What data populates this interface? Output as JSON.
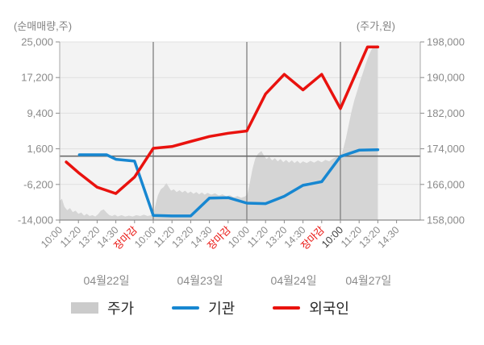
{
  "chart_data": {
    "type": "mixed-area-line",
    "title": "",
    "left_axis": {
      "title": "(순매매량,주)",
      "ticks": [
        25000,
        17200,
        9400,
        1600,
        -6200,
        -14000
      ],
      "min": -14000,
      "max": 25000,
      "zero_line": 0
    },
    "right_axis": {
      "title": "(주가,원)",
      "ticks": [
        198000,
        190000,
        182000,
        174000,
        166000,
        158000
      ],
      "min": 158000,
      "max": 198000
    },
    "x_ticks": [
      {
        "label": "10:00"
      },
      {
        "label": "11:20"
      },
      {
        "label": "13:20"
      },
      {
        "label": "14:30"
      },
      {
        "label": "장마감",
        "close": true
      },
      {
        "label": "10:00"
      },
      {
        "label": "11:20"
      },
      {
        "label": "13:20"
      },
      {
        "label": "14:30"
      },
      {
        "label": "장마감",
        "close": true
      },
      {
        "label": "10:00"
      },
      {
        "label": "11:20"
      },
      {
        "label": "13:20"
      },
      {
        "label": "14:30"
      },
      {
        "label": "장마감",
        "close": true
      },
      {
        "label": "10:00",
        "em": true
      },
      {
        "label": "11:20"
      },
      {
        "label": "13:20"
      },
      {
        "label": "14:30"
      }
    ],
    "day_separators": [
      5,
      10,
      15
    ],
    "days": [
      {
        "label": "04월22일",
        "from_tick": 0,
        "to_tick": 5
      },
      {
        "label": "04월23일",
        "from_tick": 5,
        "to_tick": 10
      },
      {
        "label": "04월24일",
        "from_tick": 10,
        "to_tick": 15
      },
      {
        "label": "04월27일",
        "from_tick": 15,
        "to_tick": 18
      }
    ],
    "series": [
      {
        "name": "주가",
        "kind": "area",
        "axis": "right",
        "color": "#d5d5d5",
        "points": [
          [
            0,
            162300
          ],
          [
            0.12,
            162800
          ],
          [
            0.25,
            161000
          ],
          [
            0.4,
            160200
          ],
          [
            0.55,
            160700
          ],
          [
            0.7,
            159800
          ],
          [
            0.85,
            160100
          ],
          [
            1.0,
            159400
          ],
          [
            1.15,
            159700
          ],
          [
            1.3,
            159000
          ],
          [
            1.45,
            159400
          ],
          [
            1.6,
            158900
          ],
          [
            1.75,
            159100
          ],
          [
            1.9,
            158800
          ],
          [
            2.05,
            159300
          ],
          [
            2.2,
            160100
          ],
          [
            2.35,
            160400
          ],
          [
            2.5,
            159700
          ],
          [
            2.65,
            159100
          ],
          [
            2.8,
            158900
          ],
          [
            2.95,
            159200
          ],
          [
            3.1,
            158800
          ],
          [
            3.3,
            159100
          ],
          [
            3.5,
            158800
          ],
          [
            3.7,
            159000
          ],
          [
            3.9,
            158800
          ],
          [
            4.1,
            159100
          ],
          [
            4.3,
            158900
          ],
          [
            4.5,
            159200
          ],
          [
            4.7,
            158900
          ],
          [
            4.9,
            159100
          ],
          [
            5.03,
            159800
          ],
          [
            5.12,
            161500
          ],
          [
            5.25,
            163600
          ],
          [
            5.4,
            164900
          ],
          [
            5.55,
            165400
          ],
          [
            5.7,
            166300
          ],
          [
            5.82,
            165500
          ],
          [
            5.95,
            164600
          ],
          [
            6.1,
            164900
          ],
          [
            6.25,
            164300
          ],
          [
            6.4,
            164700
          ],
          [
            6.55,
            164200
          ],
          [
            6.7,
            164600
          ],
          [
            6.85,
            164000
          ],
          [
            7.0,
            164400
          ],
          [
            7.15,
            163900
          ],
          [
            7.3,
            164300
          ],
          [
            7.45,
            163800
          ],
          [
            7.6,
            164200
          ],
          [
            7.75,
            163700
          ],
          [
            7.9,
            164100
          ],
          [
            8.1,
            163700
          ],
          [
            8.3,
            164000
          ],
          [
            8.5,
            163500
          ],
          [
            8.7,
            163800
          ],
          [
            8.9,
            163300
          ],
          [
            9.1,
            163600
          ],
          [
            9.3,
            163100
          ],
          [
            9.5,
            163400
          ],
          [
            9.7,
            163000
          ],
          [
            9.9,
            163300
          ],
          [
            10.03,
            163800
          ],
          [
            10.15,
            166200
          ],
          [
            10.3,
            169500
          ],
          [
            10.45,
            171800
          ],
          [
            10.6,
            172900
          ],
          [
            10.78,
            173500
          ],
          [
            10.92,
            172400
          ],
          [
            11.05,
            171700
          ],
          [
            11.2,
            172200
          ],
          [
            11.35,
            171400
          ],
          [
            11.5,
            171900
          ],
          [
            11.65,
            171200
          ],
          [
            11.8,
            171700
          ],
          [
            11.95,
            171000
          ],
          [
            12.1,
            171500
          ],
          [
            12.25,
            170900
          ],
          [
            12.4,
            171400
          ],
          [
            12.55,
            170800
          ],
          [
            12.7,
            171300
          ],
          [
            12.85,
            170700
          ],
          [
            13.0,
            171200
          ],
          [
            13.2,
            170800
          ],
          [
            13.4,
            171300
          ],
          [
            13.6,
            170900
          ],
          [
            13.8,
            171400
          ],
          [
            14.0,
            171000
          ],
          [
            14.2,
            171500
          ],
          [
            14.4,
            171200
          ],
          [
            14.6,
            171800
          ],
          [
            14.8,
            172200
          ],
          [
            14.95,
            171900
          ],
          [
            15.03,
            172300
          ],
          [
            15.15,
            174000
          ],
          [
            15.3,
            176500
          ],
          [
            15.45,
            179500
          ],
          [
            15.6,
            182500
          ],
          [
            15.75,
            185000
          ],
          [
            15.9,
            187000
          ],
          [
            16.05,
            189200
          ],
          [
            16.2,
            191000
          ],
          [
            16.35,
            193000
          ],
          [
            16.5,
            194800
          ],
          [
            16.65,
            196200
          ],
          [
            16.8,
            197000
          ],
          [
            17.0,
            197300
          ]
        ]
      },
      {
        "name": "기관",
        "kind": "line",
        "axis": "left",
        "color": "#1787d1",
        "points": [
          [
            1.05,
            300
          ],
          [
            2.5,
            300
          ],
          [
            3,
            -700
          ],
          [
            4,
            -1100
          ],
          [
            5,
            -13000
          ],
          [
            6,
            -13100
          ],
          [
            7,
            -13100
          ],
          [
            8,
            -9200
          ],
          [
            9,
            -9100
          ],
          [
            10,
            -10300
          ],
          [
            11,
            -10400
          ],
          [
            12,
            -8800
          ],
          [
            13,
            -6400
          ],
          [
            14,
            -5600
          ],
          [
            15,
            -100
          ],
          [
            16,
            1300
          ],
          [
            17,
            1400
          ]
        ]
      },
      {
        "name": "외국인",
        "kind": "line",
        "axis": "left",
        "color": "#e9120e",
        "points": [
          [
            0.35,
            -1300
          ],
          [
            1,
            -3600
          ],
          [
            2,
            -6800
          ],
          [
            3,
            -8200
          ],
          [
            4,
            -4600
          ],
          [
            5,
            1700
          ],
          [
            6,
            2100
          ],
          [
            7,
            3200
          ],
          [
            8,
            4300
          ],
          [
            9,
            5000
          ],
          [
            10,
            5500
          ],
          [
            11,
            13600
          ],
          [
            12,
            17900
          ],
          [
            13,
            14500
          ],
          [
            14,
            17900
          ],
          [
            15,
            10400
          ],
          [
            16.45,
            23900
          ],
          [
            17,
            23900
          ]
        ]
      }
    ],
    "legend": [
      {
        "label": "주가",
        "swatch": "area",
        "color": "#cbcbcb"
      },
      {
        "label": "기관",
        "swatch": "line",
        "color": "#1787d1"
      },
      {
        "label": "외국인",
        "swatch": "line",
        "color": "#e9120e"
      }
    ],
    "colors": {
      "plot_bg": "#f3f3f3",
      "gridline": "#e0e0e0",
      "day_separator": "#7f7f7f",
      "zero_line": "#6b6b6b",
      "axis_line": "#8c8c8c",
      "plot_edge": "#a8a8a8",
      "tick_text": "#8a8a8a",
      "tick_text_em": "#3c3c3c",
      "close_text": "#e9120e"
    }
  }
}
